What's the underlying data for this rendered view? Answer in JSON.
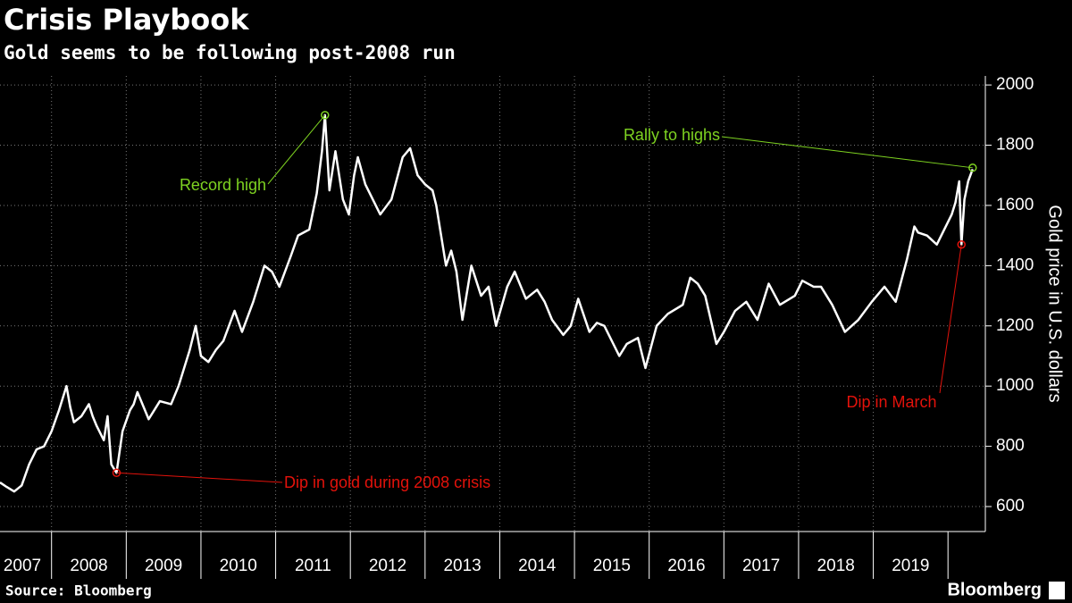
{
  "chart_data": {
    "type": "line",
    "title": "Crisis Playbook",
    "subtitle": "Gold seems to be following post-2008 run",
    "y_label": "Gold price in U.S. dollars",
    "source": "Source: Bloomberg",
    "brand": "Bloomberg",
    "xlim": [
      2007.31,
      2020.5
    ],
    "xticks": [
      2007,
      2008,
      2009,
      2010,
      2011,
      2012,
      2013,
      2014,
      2015,
      2016,
      2017,
      2018,
      2019
    ],
    "ylim": [
      517,
      2030
    ],
    "yticks": [
      600,
      800,
      1000,
      1200,
      1400,
      1600,
      1800,
      2000
    ],
    "grid": true,
    "series": [
      {
        "name": "Gold",
        "color": "#ffffff",
        "x": [
          2007.31,
          2007.4,
          2007.5,
          2007.6,
          2007.7,
          2007.8,
          2007.9,
          2008.0,
          2008.1,
          2008.2,
          2008.25,
          2008.3,
          2008.4,
          2008.5,
          2008.55,
          2008.6,
          2008.7,
          2008.75,
          2008.8,
          2008.87,
          2008.95,
          2009.05,
          2009.1,
          2009.15,
          2009.3,
          2009.45,
          2009.6,
          2009.7,
          2009.85,
          2009.93,
          2010.0,
          2010.1,
          2010.2,
          2010.3,
          2010.45,
          2010.55,
          2010.7,
          2010.85,
          2010.95,
          2011.05,
          2011.2,
          2011.3,
          2011.45,
          2011.55,
          2011.62,
          2011.66,
          2011.72,
          2011.8,
          2011.9,
          2011.98,
          2012.05,
          2012.1,
          2012.2,
          2012.3,
          2012.4,
          2012.55,
          2012.7,
          2012.8,
          2012.9,
          2013.0,
          2013.1,
          2013.15,
          2013.28,
          2013.35,
          2013.42,
          2013.5,
          2013.62,
          2013.75,
          2013.85,
          2013.95,
          2014.1,
          2014.2,
          2014.35,
          2014.5,
          2014.6,
          2014.7,
          2014.85,
          2014.95,
          2015.05,
          2015.2,
          2015.3,
          2015.4,
          2015.5,
          2015.6,
          2015.7,
          2015.85,
          2015.95,
          2016.1,
          2016.25,
          2016.45,
          2016.55,
          2016.65,
          2016.75,
          2016.9,
          2017.0,
          2017.15,
          2017.3,
          2017.45,
          2017.6,
          2017.75,
          2017.95,
          2018.05,
          2018.2,
          2018.3,
          2018.45,
          2018.62,
          2018.8,
          2018.98,
          2019.15,
          2019.3,
          2019.45,
          2019.55,
          2019.6,
          2019.72,
          2019.85,
          2019.97,
          2020.05,
          2020.1,
          2020.15,
          2020.18,
          2020.22,
          2020.27,
          2020.33
        ],
        "values": [
          680,
          665,
          650,
          670,
          740,
          790,
          800,
          850,
          920,
          1000,
          930,
          880,
          900,
          940,
          900,
          870,
          820,
          900,
          740,
          712,
          850,
          920,
          940,
          980,
          890,
          950,
          940,
          1000,
          1120,
          1200,
          1100,
          1080,
          1120,
          1150,
          1250,
          1180,
          1280,
          1400,
          1380,
          1330,
          1430,
          1500,
          1520,
          1640,
          1780,
          1900,
          1650,
          1780,
          1620,
          1570,
          1700,
          1760,
          1670,
          1620,
          1570,
          1620,
          1760,
          1790,
          1700,
          1670,
          1650,
          1600,
          1400,
          1450,
          1380,
          1220,
          1400,
          1300,
          1330,
          1200,
          1330,
          1380,
          1290,
          1320,
          1280,
          1220,
          1170,
          1200,
          1290,
          1180,
          1210,
          1200,
          1150,
          1100,
          1140,
          1160,
          1060,
          1200,
          1240,
          1270,
          1360,
          1340,
          1300,
          1140,
          1180,
          1250,
          1280,
          1220,
          1340,
          1270,
          1300,
          1350,
          1330,
          1330,
          1270,
          1180,
          1220,
          1280,
          1330,
          1280,
          1420,
          1530,
          1510,
          1500,
          1470,
          1530,
          1570,
          1610,
          1680,
          1470,
          1620,
          1680,
          1720
        ]
      }
    ],
    "annotations": [
      {
        "text": "Record high",
        "x": 2011.66,
        "y": 1900,
        "color": "#7ed321"
      },
      {
        "text": "Rally to highs",
        "x": 2020.33,
        "y": 1725,
        "color": "#7ed321"
      },
      {
        "text": "Dip in gold during 2008 crisis",
        "x": 2008.87,
        "y": 712,
        "color": "#e3120b"
      },
      {
        "text": "Dip in March",
        "x": 2020.18,
        "y": 1470,
        "color": "#e3120b"
      }
    ]
  }
}
